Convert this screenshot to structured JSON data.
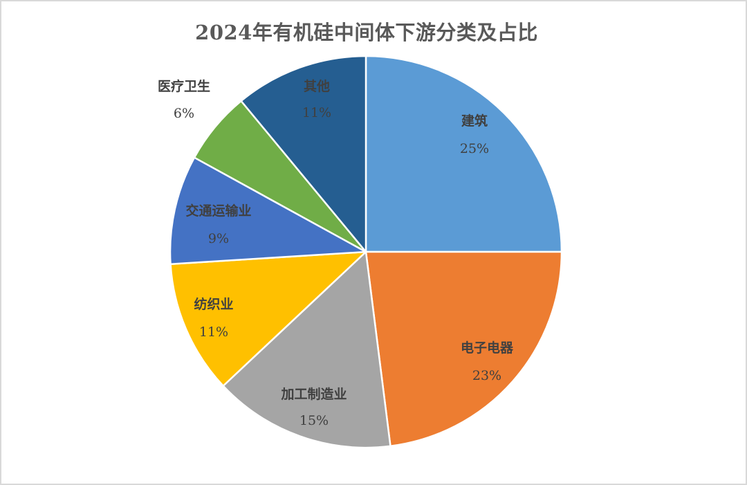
{
  "chart_data": {
    "type": "pie",
    "title": "2024年有机硅中间体下游分类及占比",
    "start_angle_deg": 0,
    "direction": "clockwise",
    "categories": [
      "建筑",
      "电子电器",
      "加工制造业",
      "纺织业",
      "交通运输业",
      "医疗卫生",
      "其他"
    ],
    "values": [
      25,
      23,
      15,
      11,
      9,
      6,
      11
    ],
    "value_labels": [
      "25%",
      "23%",
      "15%",
      "11%",
      "9%",
      "6%",
      "11%"
    ],
    "colors": [
      "#5B9BD5",
      "#ED7D31",
      "#A5A5A5",
      "#FFC000",
      "#4472C4",
      "#70AD47",
      "#255E91"
    ],
    "legend": "none (data labels on slices)",
    "unit": "%"
  },
  "labels": {
    "s0": {
      "name": "建筑",
      "pct": "25%"
    },
    "s1": {
      "name": "电子电器",
      "pct": "23%"
    },
    "s2": {
      "name": "加工制造业",
      "pct": "15%"
    },
    "s3": {
      "name": "纺织业",
      "pct": "11%"
    },
    "s4": {
      "name": "交通运输业",
      "pct": "9%"
    },
    "s5": {
      "name": "医疗卫生",
      "pct": "6%"
    },
    "s6": {
      "name": "其他",
      "pct": "11%"
    }
  }
}
